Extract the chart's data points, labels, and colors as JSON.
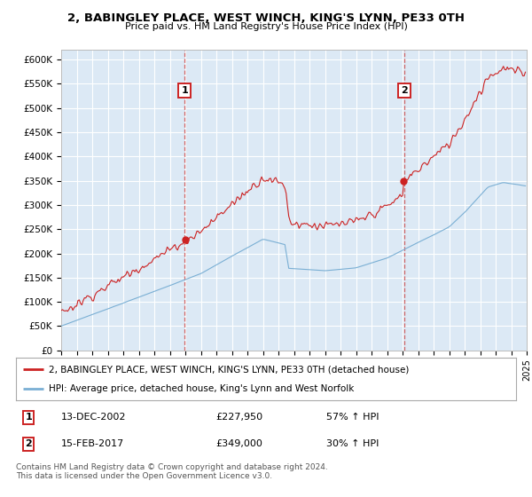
{
  "title": "2, BABINGLEY PLACE, WEST WINCH, KING'S LYNN, PE33 0TH",
  "subtitle": "Price paid vs. HM Land Registry's House Price Index (HPI)",
  "bg_color": "#dce9f5",
  "red_label": "2, BABINGLEY PLACE, WEST WINCH, KING'S LYNN, PE33 0TH (detached house)",
  "blue_label": "HPI: Average price, detached house, King's Lynn and West Norfolk",
  "footer": "Contains HM Land Registry data © Crown copyright and database right 2024.\nThis data is licensed under the Open Government Licence v3.0.",
  "sale1_date": "13-DEC-2002",
  "sale1_price": "£227,950",
  "sale1_hpi": "57% ↑ HPI",
  "sale2_date": "15-FEB-2017",
  "sale2_price": "£349,000",
  "sale2_hpi": "30% ↑ HPI",
  "ylim": [
    0,
    620000
  ],
  "yticks": [
    0,
    50000,
    100000,
    150000,
    200000,
    250000,
    300000,
    350000,
    400000,
    450000,
    500000,
    550000,
    600000
  ],
  "ytick_labels": [
    "£0",
    "£50K",
    "£100K",
    "£150K",
    "£200K",
    "£250K",
    "£300K",
    "£350K",
    "£400K",
    "£450K",
    "£500K",
    "£550K",
    "£600K"
  ],
  "sale1_x": 2002.96,
  "sale2_x": 2017.12,
  "sale1_y": 227950,
  "sale2_y": 349000,
  "xmin": 1995,
  "xmax": 2025
}
